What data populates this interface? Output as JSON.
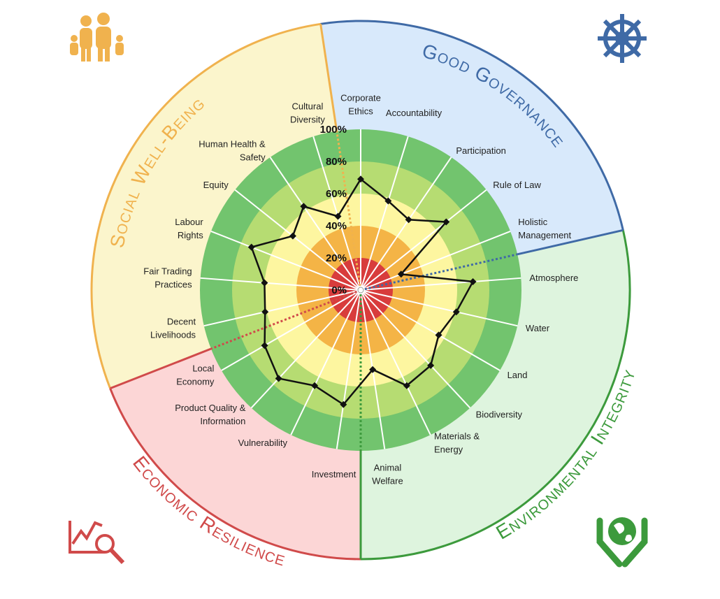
{
  "chart_data": {
    "type": "radar",
    "rlim": [
      0,
      100
    ],
    "rticks": [
      {
        "value": 0,
        "label": "0%"
      },
      {
        "value": 20,
        "label": "20%"
      },
      {
        "value": 40,
        "label": "40%"
      },
      {
        "value": 60,
        "label": "60%"
      },
      {
        "value": 80,
        "label": "80%"
      },
      {
        "value": 100,
        "label": "100%"
      }
    ],
    "band_colors": [
      "#d83c3c",
      "#f4b446",
      "#fdf6a0",
      "#b6dc72",
      "#72c46e"
    ],
    "line_color": "#111111",
    "dimensions": [
      {
        "name": "Good Governance",
        "color": "#3f6aa6",
        "fill": "#d8e9fb",
        "categories": [
          [
            "Corporate",
            "Ethics"
          ],
          [
            "Accountability"
          ],
          [
            "Participation"
          ],
          [
            "Rule of Law"
          ],
          [
            "Holistic",
            "Management"
          ]
        ],
        "values": [
          69,
          58,
          53,
          68,
          27
        ]
      },
      {
        "name": "Environmental Integrity",
        "color": "#3c9a3c",
        "fill": "#def4de",
        "categories": [
          [
            "Atmosphere"
          ],
          [
            "Water"
          ],
          [
            "Land"
          ],
          [
            "Biodiversity"
          ],
          [
            "Materials &",
            "Energy"
          ],
          [
            "Animal",
            "Welfare"
          ]
        ],
        "values": [
          70,
          61,
          56,
          64,
          66,
          50
        ]
      },
      {
        "name": "Economic Resilience",
        "color": "#d04a4a",
        "fill": "#fcd6d6",
        "categories": [
          [
            "Investment"
          ],
          [
            "Vulnerability"
          ],
          [
            "Product Quality &",
            "Information"
          ],
          [
            "Local",
            "Economy"
          ]
        ],
        "values": [
          72,
          66,
          75,
          69
        ]
      },
      {
        "name": "Social Well-Being",
        "color": "#f0b24e",
        "fill": "#fbf5cc",
        "categories": [
          [
            "Decent",
            "Livelihoods"
          ],
          [
            "Fair Trading",
            "Practices"
          ],
          [
            "Labour",
            "Rights"
          ],
          [
            "Equity"
          ],
          [
            "Human Health &",
            "Safety"
          ],
          [
            "Cultural",
            "Diversity"
          ]
        ],
        "values": [
          61,
          60,
          73,
          54,
          63,
          48
        ]
      }
    ]
  }
}
